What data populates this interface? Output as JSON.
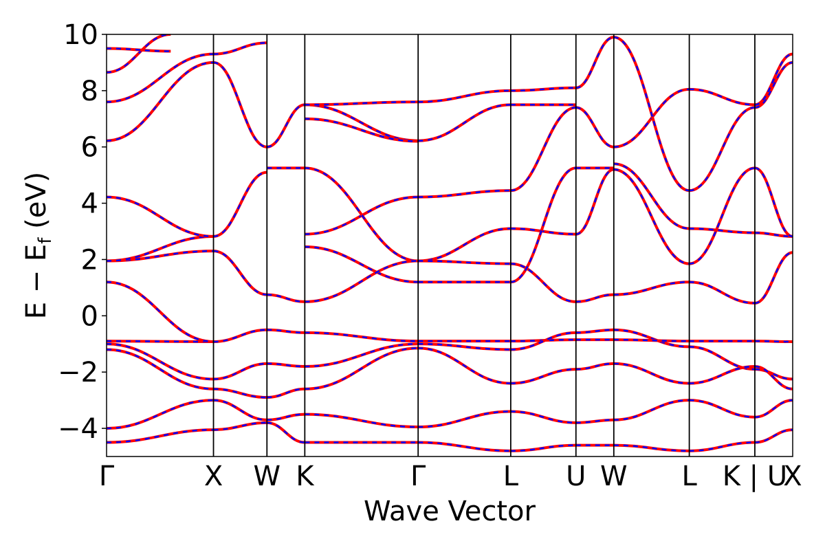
{
  "chart_data": {
    "type": "line",
    "xlabel": "Wave Vector",
    "ylabel": "E − E_f (eV)",
    "ylabel_parts": {
      "pre": "E − E",
      "sub": "f",
      "post": " (eV)"
    },
    "ylim": [
      -5,
      10
    ],
    "y_ticks": [
      -4,
      -2,
      0,
      2,
      4,
      6,
      8,
      10
    ],
    "y_tick_labels": [
      "−4",
      "−2",
      "0",
      "2",
      "4",
      "6",
      "8",
      "10"
    ],
    "grid": false,
    "legend": "none",
    "k_path": [
      {
        "label": "Γ",
        "k": 0.0
      },
      {
        "label": "X",
        "k": 1.0
      },
      {
        "label": "W",
        "k": 1.5
      },
      {
        "label": "K",
        "k": 1.854
      },
      {
        "label": "Γ",
        "k": 2.914
      },
      {
        "label": "L",
        "k": 3.78
      },
      {
        "label": "U",
        "k": 4.39
      },
      {
        "label": "W",
        "k": 4.744
      },
      {
        "label": "L",
        "k": 5.45
      },
      {
        "label": "K | U",
        "k": 6.063
      },
      {
        "label": "X",
        "k": 6.417
      }
    ],
    "colors": {
      "series_a": "#ff0000",
      "series_b": "#0000ff",
      "frame": "#000000"
    },
    "series": [
      {
        "values": [
          {
            "x": [
              0,
              1.0
            ],
            "y": [
              -4.5,
              -4.05
            ]
          },
          {
            "x": [
              0,
              1.0
            ],
            "y": [
              -4.0,
              -3.0
            ]
          },
          {
            "x": [
              0,
              1.0
            ],
            "y": [
              -1.2,
              -2.6
            ]
          },
          {
            "x": [
              0,
              1.0
            ],
            "y": [
              -1.0,
              -2.25
            ]
          },
          {
            "x": [
              0,
              1.0
            ],
            "y": [
              -0.9,
              -0.92
            ]
          },
          {
            "x": [
              0,
              1.0
            ],
            "y": [
              1.2,
              -0.92
            ]
          },
          {
            "x": [
              0,
              1.0
            ],
            "y": [
              1.95,
              2.3
            ]
          },
          {
            "x": [
              0,
              1.0
            ],
            "y": [
              1.95,
              2.82
            ]
          },
          {
            "x": [
              0,
              1.0
            ],
            "y": [
              4.22,
              2.82
            ]
          },
          {
            "x": [
              0,
              1.0
            ],
            "y": [
              6.22,
              9.0
            ]
          },
          {
            "x": [
              0,
              1.0
            ],
            "y": [
              7.6,
              9.3
            ]
          },
          {
            "x": [
              0,
              0.6
            ],
            "y": [
              8.65,
              10.0
            ]
          },
          {
            "x": [
              0,
              0.6
            ],
            "y": [
              9.5,
              9.4
            ]
          },
          {
            "x": [
              1.0,
              1.5
            ],
            "y": [
              9.3,
              9.7
            ]
          },
          {
            "x": [
              1.0,
              1.5
            ],
            "y": [
              9.0,
              6.0
            ]
          },
          {
            "x": [
              1.0,
              1.5
            ],
            "y": [
              2.3,
              0.75
            ]
          },
          {
            "x": [
              1.0,
              1.5
            ],
            "y": [
              2.82,
              5.1
            ]
          },
          {
            "x": [
              1.0,
              1.5
            ],
            "y": [
              -0.92,
              -0.5
            ]
          },
          {
            "x": [
              1.0,
              1.5
            ],
            "y": [
              -2.25,
              -1.7
            ]
          },
          {
            "x": [
              1.0,
              1.5
            ],
            "y": [
              -2.6,
              -2.9
            ]
          },
          {
            "x": [
              1.0,
              1.5
            ],
            "y": [
              -3.0,
              -3.7
            ]
          },
          {
            "x": [
              1.0,
              1.5
            ],
            "y": [
              -4.05,
              -3.8
            ]
          },
          {
            "x": [
              1.5,
              1.854
            ],
            "y": [
              5.25,
              5.25
            ]
          },
          {
            "x": [
              1.5,
              1.854
            ],
            "y": [
              6.0,
              7.5
            ]
          },
          {
            "x": [
              1.5,
              1.854
            ],
            "y": [
              0.75,
              0.5
            ]
          },
          {
            "x": [
              1.5,
              1.854
            ],
            "y": [
              -0.5,
              -0.6
            ]
          },
          {
            "x": [
              1.5,
              1.854
            ],
            "y": [
              -1.7,
              -1.8
            ]
          },
          {
            "x": [
              1.5,
              1.854
            ],
            "y": [
              -2.9,
              -2.6
            ]
          },
          {
            "x": [
              1.5,
              1.854
            ],
            "y": [
              -3.7,
              -3.5
            ]
          },
          {
            "x": [
              1.5,
              1.854
            ],
            "y": [
              -3.8,
              -4.5
            ]
          },
          {
            "x": [
              1.854,
              2.914
            ],
            "y": [
              2.9,
              4.22
            ]
          },
          {
            "x": [
              1.854,
              2.914
            ],
            "y": [
              2.45,
              1.2
            ]
          },
          {
            "x": [
              1.854,
              2.914
            ],
            "y": [
              5.25,
              1.95
            ]
          },
          {
            "x": [
              1.854,
              2.914
            ],
            "y": [
              7.5,
              6.22
            ]
          },
          {
            "x": [
              1.854,
              2.914
            ],
            "y": [
              7.0,
              6.2
            ]
          },
          {
            "x": [
              1.854,
              2.914
            ],
            "y": [
              7.5,
              7.6
            ]
          },
          {
            "x": [
              1.854,
              2.914
            ],
            "y": [
              0.5,
              1.95
            ]
          },
          {
            "x": [
              1.854,
              2.914
            ],
            "y": [
              -0.6,
              -0.9
            ]
          },
          {
            "x": [
              1.854,
              2.914
            ],
            "y": [
              -1.8,
              -1.0
            ]
          },
          {
            "x": [
              1.854,
              2.914
            ],
            "y": [
              -2.6,
              -1.15
            ]
          },
          {
            "x": [
              1.854,
              2.914
            ],
            "y": [
              -3.5,
              -3.95
            ]
          },
          {
            "x": [
              1.854,
              2.914
            ],
            "y": [
              -4.5,
              -4.5
            ]
          },
          {
            "x": [
              2.914,
              3.78
            ],
            "y": [
              4.22,
              4.45
            ]
          },
          {
            "x": [
              2.914,
              3.78
            ],
            "y": [
              1.95,
              3.1
            ]
          },
          {
            "x": [
              2.914,
              3.78
            ],
            "y": [
              1.95,
              1.85
            ]
          },
          {
            "x": [
              2.914,
              3.78
            ],
            "y": [
              1.2,
              1.2
            ]
          },
          {
            "x": [
              2.914,
              3.78
            ],
            "y": [
              6.22,
              7.5
            ]
          },
          {
            "x": [
              2.914,
              3.78
            ],
            "y": [
              7.6,
              8.0
            ]
          },
          {
            "x": [
              2.914,
              3.78
            ],
            "y": [
              -0.9,
              -0.9
            ]
          },
          {
            "x": [
              2.914,
              3.78
            ],
            "y": [
              -1.0,
              -1.2
            ]
          },
          {
            "x": [
              2.914,
              3.78
            ],
            "y": [
              -1.15,
              -2.4
            ]
          },
          {
            "x": [
              2.914,
              3.78
            ],
            "y": [
              -3.95,
              -3.4
            ]
          },
          {
            "x": [
              2.914,
              3.78
            ],
            "y": [
              -4.5,
              -4.8
            ]
          },
          {
            "x": [
              3.78,
              4.39
            ],
            "y": [
              4.45,
              7.4
            ]
          },
          {
            "x": [
              3.78,
              4.39
            ],
            "y": [
              3.1,
              2.9
            ]
          },
          {
            "x": [
              3.78,
              4.39
            ],
            "y": [
              1.85,
              0.5
            ]
          },
          {
            "x": [
              3.78,
              4.39
            ],
            "y": [
              1.2,
              5.25
            ]
          },
          {
            "x": [
              3.78,
              4.39
            ],
            "y": [
              7.5,
              7.5
            ]
          },
          {
            "x": [
              3.78,
              4.39
            ],
            "y": [
              8.0,
              8.1
            ]
          },
          {
            "x": [
              3.78,
              4.39
            ],
            "y": [
              -0.9,
              -0.85
            ]
          },
          {
            "x": [
              3.78,
              4.39
            ],
            "y": [
              -1.2,
              -0.6
            ]
          },
          {
            "x": [
              3.78,
              4.39
            ],
            "y": [
              -2.4,
              -1.9
            ]
          },
          {
            "x": [
              3.78,
              4.39
            ],
            "y": [
              -3.4,
              -3.8
            ]
          },
          {
            "x": [
              3.78,
              4.39
            ],
            "y": [
              -4.8,
              -4.6
            ]
          },
          {
            "x": [
              4.39,
              4.744
            ],
            "y": [
              0.5,
              0.75
            ]
          },
          {
            "x": [
              4.39,
              4.744
            ],
            "y": [
              2.9,
              5.2
            ]
          },
          {
            "x": [
              4.39,
              4.744
            ],
            "y": [
              5.25,
              5.25
            ]
          },
          {
            "x": [
              4.39,
              4.744
            ],
            "y": [
              7.4,
              6.0
            ]
          },
          {
            "x": [
              4.39,
              4.744
            ],
            "y": [
              8.1,
              9.9
            ]
          },
          {
            "x": [
              4.39,
              4.744
            ],
            "y": [
              -0.6,
              -0.5
            ]
          },
          {
            "x": [
              4.39,
              4.744
            ],
            "y": [
              -0.85,
              -0.85
            ]
          },
          {
            "x": [
              4.39,
              4.744
            ],
            "y": [
              -1.9,
              -1.7
            ]
          },
          {
            "x": [
              4.39,
              4.744
            ],
            "y": [
              -3.8,
              -3.7
            ]
          },
          {
            "x": [
              4.39,
              4.744
            ],
            "y": [
              -4.6,
              -4.6
            ]
          },
          {
            "x": [
              4.744,
              5.45
            ],
            "y": [
              0.75,
              1.2
            ]
          },
          {
            "x": [
              4.744,
              5.45
            ],
            "y": [
              5.2,
              1.85
            ]
          },
          {
            "x": [
              4.744,
              5.45
            ],
            "y": [
              5.4,
              3.1
            ]
          },
          {
            "x": [
              4.744,
              5.45
            ],
            "y": [
              6.0,
              8.05
            ]
          },
          {
            "x": [
              4.744,
              5.45
            ],
            "y": [
              9.9,
              4.45
            ]
          },
          {
            "x": [
              4.744,
              5.45
            ],
            "y": [
              -0.5,
              -1.1
            ]
          },
          {
            "x": [
              4.744,
              5.45
            ],
            "y": [
              -0.85,
              -0.9
            ]
          },
          {
            "x": [
              4.744,
              5.45
            ],
            "y": [
              -1.7,
              -2.4
            ]
          },
          {
            "x": [
              4.744,
              5.45
            ],
            "y": [
              -3.7,
              -3.0
            ]
          },
          {
            "x": [
              4.744,
              5.45
            ],
            "y": [
              -4.6,
              -4.8
            ]
          },
          {
            "x": [
              5.45,
              6.063
            ],
            "y": [
              1.2,
              0.45
            ]
          },
          {
            "x": [
              5.45,
              6.063
            ],
            "y": [
              1.85,
              5.25
            ]
          },
          {
            "x": [
              5.45,
              6.063
            ],
            "y": [
              3.1,
              2.95
            ]
          },
          {
            "x": [
              5.45,
              6.063
            ],
            "y": [
              4.45,
              7.4
            ]
          },
          {
            "x": [
              5.45,
              6.063
            ],
            "y": [
              8.05,
              7.5
            ]
          },
          {
            "x": [
              5.45,
              6.063
            ],
            "y": [
              -0.9,
              -0.9
            ]
          },
          {
            "x": [
              5.45,
              6.063
            ],
            "y": [
              -1.1,
              -1.9
            ]
          },
          {
            "x": [
              5.45,
              6.063
            ],
            "y": [
              -2.4,
              -1.8
            ]
          },
          {
            "x": [
              5.45,
              6.063
            ],
            "y": [
              -3.0,
              -3.6
            ]
          },
          {
            "x": [
              5.45,
              6.063
            ],
            "y": [
              -4.8,
              -4.5
            ]
          },
          {
            "x": [
              6.063,
              6.417
            ],
            "y": [
              0.45,
              2.25
            ]
          },
          {
            "x": [
              6.063,
              6.417
            ],
            "y": [
              2.95,
              2.82
            ]
          },
          {
            "x": [
              6.063,
              6.417
            ],
            "y": [
              5.25,
              2.82
            ]
          },
          {
            "x": [
              6.063,
              6.417
            ],
            "y": [
              7.4,
              9.0
            ]
          },
          {
            "x": [
              6.063,
              6.417
            ],
            "y": [
              7.5,
              9.3
            ]
          },
          {
            "x": [
              6.063,
              6.417
            ],
            "y": [
              -0.9,
              -0.92
            ]
          },
          {
            "x": [
              6.063,
              6.417
            ],
            "y": [
              -1.9,
              -2.25
            ]
          },
          {
            "x": [
              6.063,
              6.417
            ],
            "y": [
              -1.8,
              -2.6
            ]
          },
          {
            "x": [
              6.063,
              6.417
            ],
            "y": [
              -3.6,
              -3.0
            ]
          },
          {
            "x": [
              6.063,
              6.417
            ],
            "y": [
              -4.5,
              -4.05
            ]
          }
        ]
      }
    ]
  }
}
